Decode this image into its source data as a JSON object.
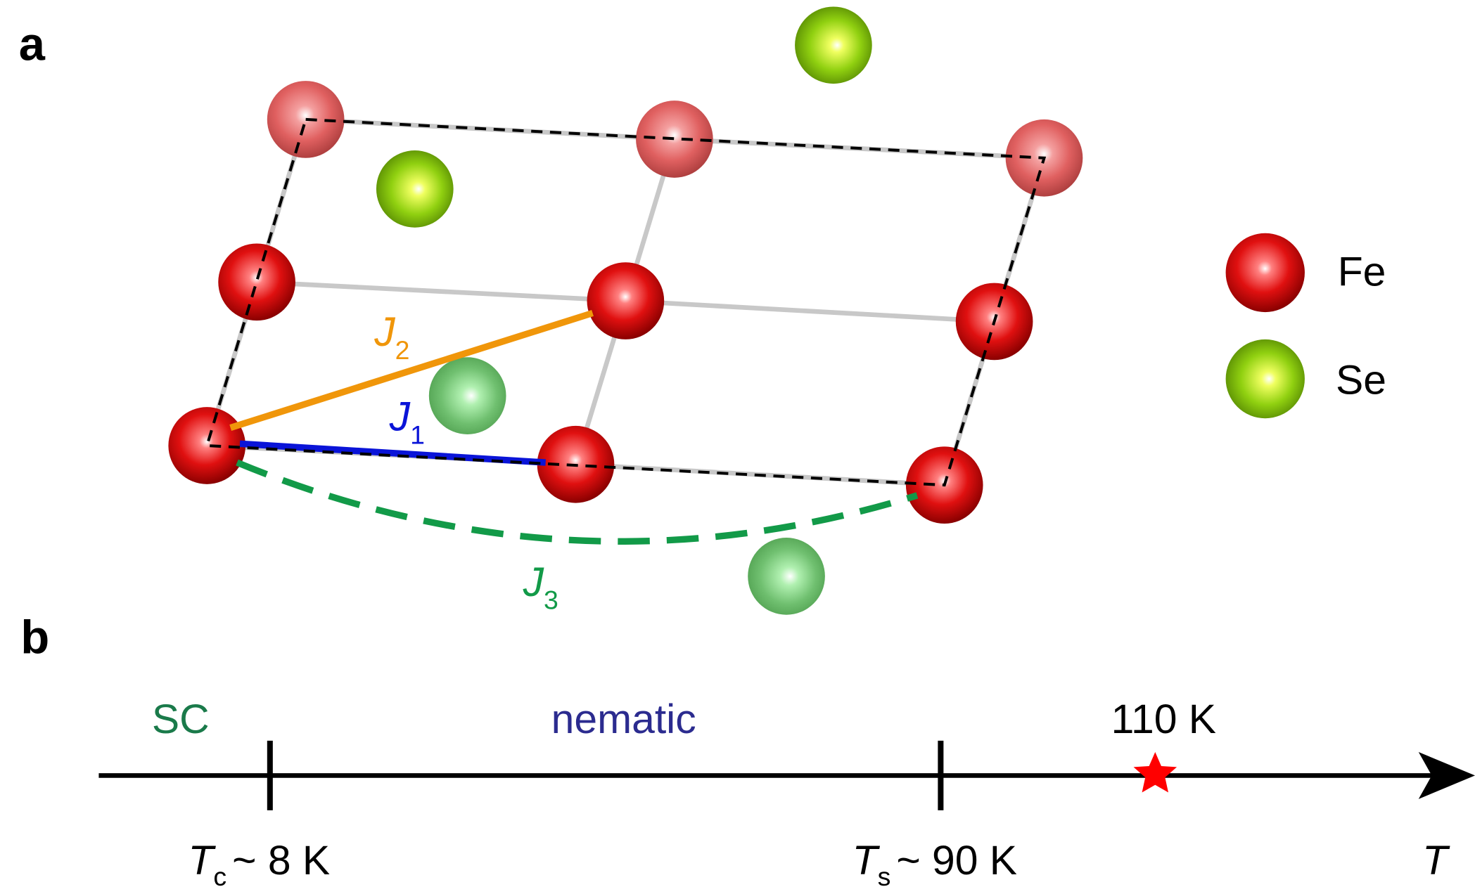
{
  "panel_a": {
    "label": "a",
    "bonds": [
      {
        "symbol": "J",
        "subscript": "1"
      },
      {
        "symbol": "J",
        "subscript": "2"
      },
      {
        "symbol": "J",
        "subscript": "3"
      }
    ],
    "legend": [
      {
        "label": "Fe"
      },
      {
        "label": "Se"
      }
    ]
  },
  "panel_b": {
    "label": "b",
    "phases": [
      "SC",
      "nematic"
    ],
    "marker_label": "110 K",
    "transitions": [
      {
        "symbol": "T",
        "subscript": "c",
        "text": "~ 8 K"
      },
      {
        "symbol": "T",
        "subscript": "s",
        "text": "~ 90 K"
      }
    ],
    "axis_label": "T"
  }
}
